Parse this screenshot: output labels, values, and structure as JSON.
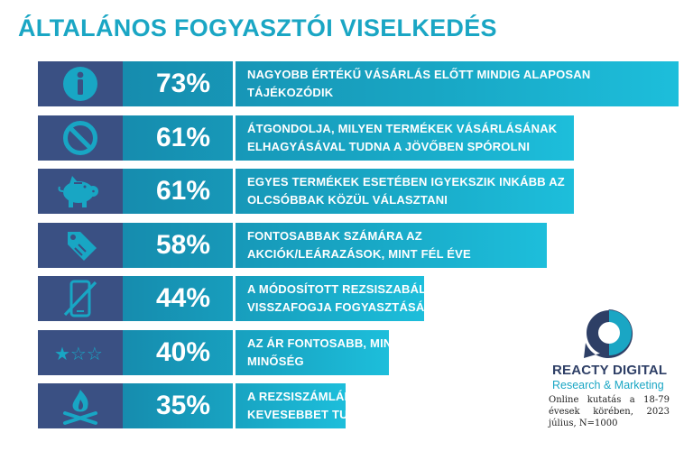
{
  "title": "ÁLTALÁNOS FOGYASZTÓI VISELKEDÉS",
  "chart_data": {
    "type": "bar",
    "orientation": "horizontal",
    "title": "ÁLTALÁNOS FOGYASZTÓI VISELKEDÉS",
    "xlim": [
      0,
      100
    ],
    "items": [
      {
        "icon": "info-icon",
        "value": 73,
        "label": "73%",
        "text": [
          "NAGYOBB ÉRTÉKŰ VÁSÁRLÁS ELŐTT MINDIG ALAPOSAN",
          "TÁJÉKOZÓDIK"
        ]
      },
      {
        "icon": "prohibited-icon",
        "value": 61,
        "label": "61%",
        "text": [
          "ÁTGONDOLJA, MILYEN TERMÉKEK VÁSÁRLÁSÁNAK",
          "ELHAGYÁSÁVAL TUDNA A JÖVŐBEN SPÓROLNI"
        ]
      },
      {
        "icon": "piggy-bank-icon",
        "value": 61,
        "label": "61%",
        "text": [
          "EGYES TERMÉKEK ESETÉBEN IGYEKSZIK INKÁBB AZ",
          "OLCSÓBBAK KÖZÜL VÁLASZTANI"
        ]
      },
      {
        "icon": "price-tag-icon",
        "value": 58,
        "label": "58%",
        "text": [
          "FONTOSABBAK SZÁMÁRA AZ",
          "AKCIÓK/LEÁRAZÁSOK, MINT FÉL ÉVE"
        ]
      },
      {
        "icon": "phone-off-icon",
        "value": 44,
        "label": "44%",
        "text": [
          "A MÓDOSÍTOTT REZSISZABÁLY MIATT",
          "VISSZAFOGJA FOGYASZTÁSÁT"
        ]
      },
      {
        "icon": "star-rating-icon",
        "value": 40,
        "label": "40%",
        "text": [
          "AZ ÁR FONTOSABB, MINT A",
          "MINŐSÉG"
        ]
      },
      {
        "icon": "campfire-icon",
        "value": 35,
        "label": "35%",
        "text": [
          "A REZSISZÁMLÁK NÖVEKEDÉSE MIATT",
          "KEVESEBBET TUD KÖLTENI MÁSRA"
        ]
      }
    ]
  },
  "logo": {
    "brand": "REACTY DIGITAL",
    "subtitle": "Research & Marketing"
  },
  "note": "Online kutatás a 18-79 évesek körében, 2023 július, N=1000",
  "colors": {
    "title": "#1aa6c4",
    "icon_bg": "#3a5083",
    "bar": "#18a6c4",
    "brand": "#2e3f66"
  }
}
